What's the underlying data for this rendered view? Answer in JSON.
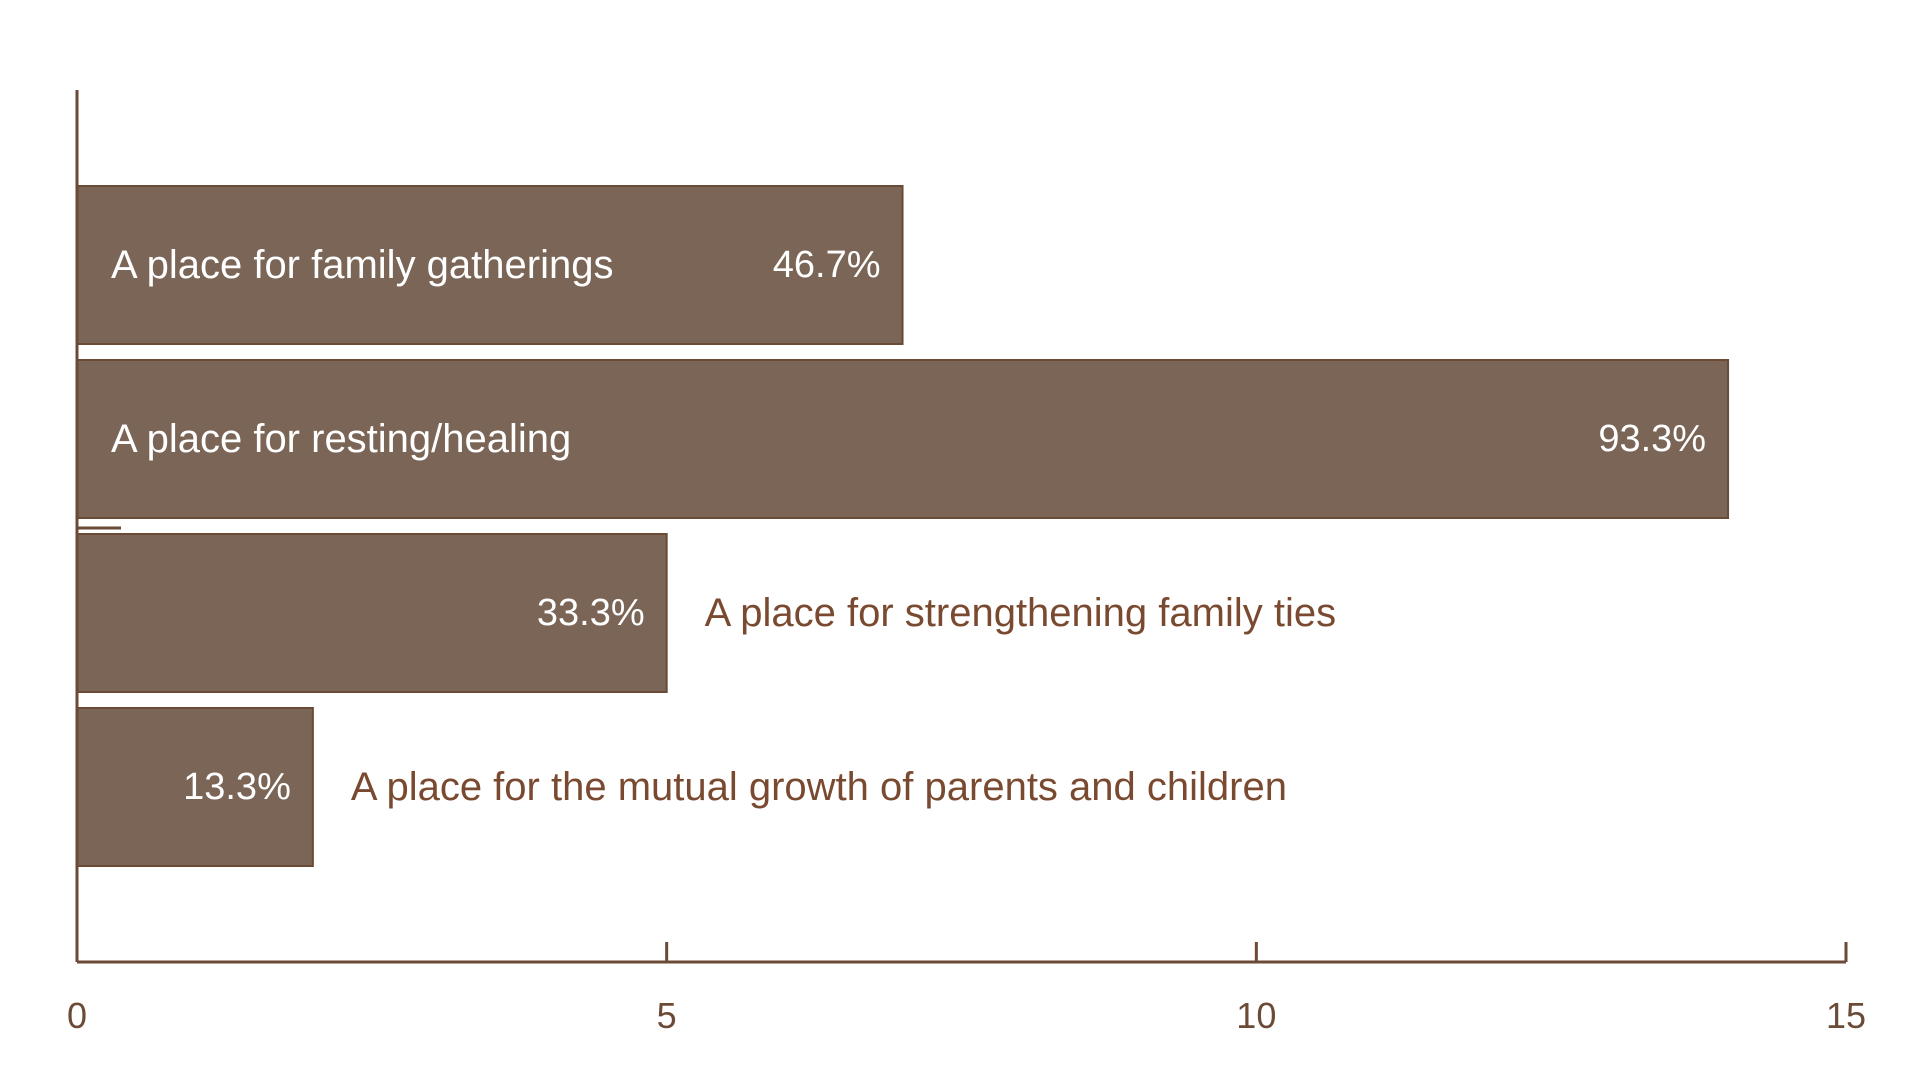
{
  "chart_data": {
    "type": "bar",
    "orientation": "horizontal",
    "categories": [
      "A place for family gatherings",
      "A place for resting/healing",
      "A place for strengthening family ties",
      "A place for the mutual growth of parents and children"
    ],
    "values": [
      7,
      14,
      5,
      2
    ],
    "percent_labels": [
      "46.7%",
      "93.3%",
      "33.3%",
      "13.3%"
    ],
    "category_label_position": [
      "inside",
      "inside",
      "outside",
      "outside"
    ],
    "xlim": [
      0,
      15
    ],
    "xticks": [
      0,
      5,
      10,
      15
    ],
    "xtick_labels": [
      "0",
      "5",
      "10",
      "15"
    ],
    "grid": false,
    "legend": "none",
    "title": "",
    "xlabel": "",
    "ylabel": ""
  },
  "colors": {
    "bar": "#7a6556",
    "bar_stroke": "#6b4a36",
    "axis": "#6b4a36",
    "tick_label": "#6b4a36",
    "label_outside": "#7a4a30",
    "label_inside": "#ffffff"
  }
}
